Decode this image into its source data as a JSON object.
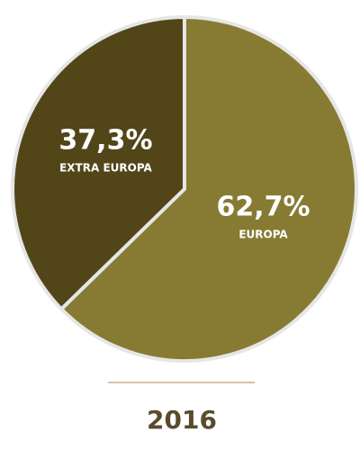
{
  "chart_data": {
    "type": "pie",
    "title": "2016",
    "categories": [
      "EUROPA",
      "EXTRA EUROPA"
    ],
    "values": [
      62.7,
      37.3
    ],
    "value_labels": [
      "62,7%",
      "37,3%"
    ],
    "colors": [
      "#877b33",
      "#524619"
    ]
  }
}
